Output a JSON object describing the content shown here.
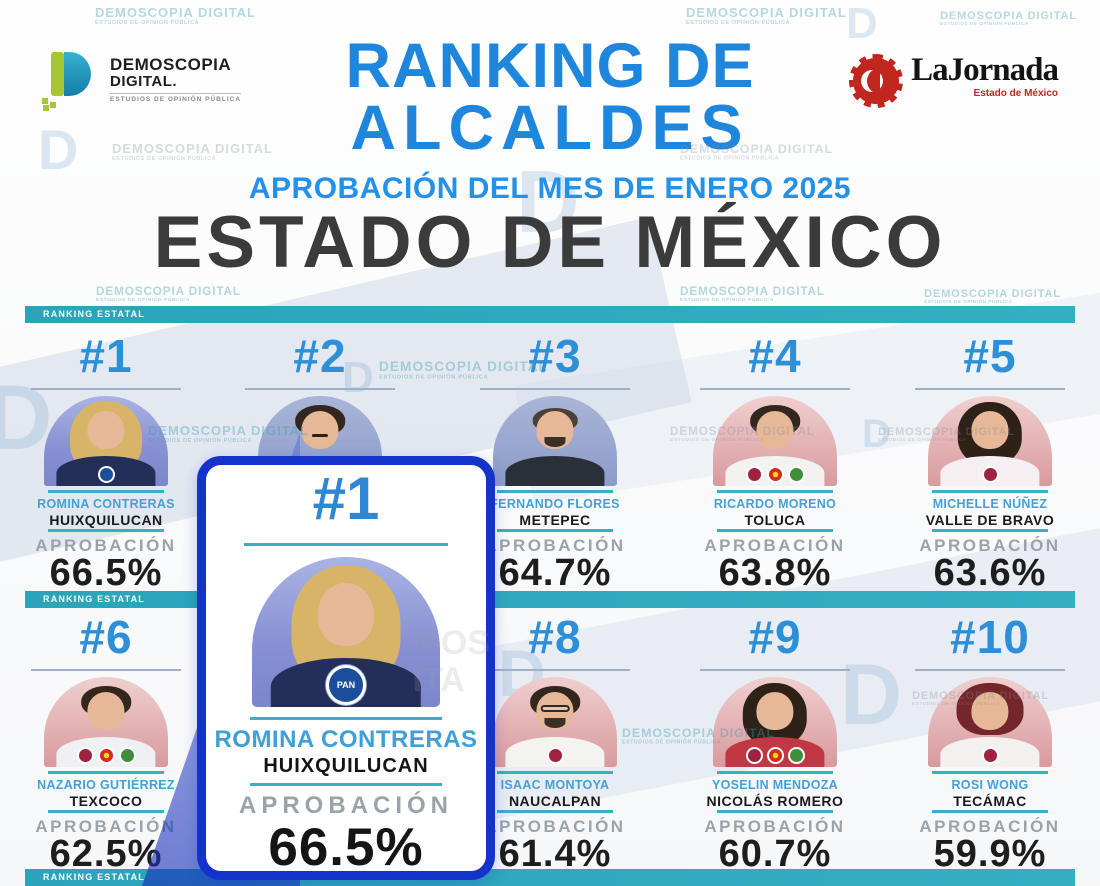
{
  "header": {
    "brand": {
      "name": "DEMOSCOPIA",
      "name2": "DIGITAL.",
      "tagline": "ESTUDIOS DE OPINIÓN PÚBLICA"
    },
    "title_line1": "RANKING DE",
    "title_line2": "ALCALDES",
    "subtitle": "APROBACIÓN DEL MES DE ENERO 2025",
    "state_title": "ESTADO DE MÉXICO",
    "partner": {
      "name": "LaJornada",
      "subtitle": "Estado de México"
    }
  },
  "section_banner": "RANKING ESTATAL",
  "watermark": {
    "line1": "DEMOSCOPIA DIGITAL",
    "line2": "ESTUDIOS DE OPINIÓN PÚBLICA"
  },
  "colors": {
    "title_blue": "#1e86dd",
    "rank_blue": "#2e8fd9",
    "name_blue": "#45a0d6",
    "teal": "#2fa9bd",
    "card_border_blue": "#1433cb",
    "dark_text": "#1d1d1d",
    "approval_gray": "#9aa3aa",
    "jornada_red": "#c2271f",
    "pan_blue": "#1b4f9e",
    "morena_red": "#9f2241",
    "pt_red": "#d52b1e",
    "pvem_green": "#3f8f3a"
  },
  "highlight_card": {
    "rank": "#1",
    "name": "ROMINA CONTRERAS",
    "municipality": "HUIXQUILUCAN",
    "approval_label": "APROBACIÓN",
    "approval": "66.5%",
    "party_logo": "pan-logo",
    "party_label": "PAN"
  },
  "ranking": {
    "rows": [
      {
        "entries": [
          {
            "rank": "#1",
            "name": "ROMINA CONTRERAS",
            "municipality": "HUIXQUILUCAN",
            "approval_label": "APROBACIÓN",
            "approval": "66.5%",
            "photo": {
              "bg": "lavender",
              "hair": "blonde",
              "torso": "#232f58"
            },
            "party_logos": [
              "pan-logo"
            ]
          },
          {
            "rank": "#2",
            "photo": {
              "bg": "bluegray",
              "hair": "dark",
              "mustache": true,
              "torso": "#202b49"
            },
            "party_logos": []
          },
          {
            "rank": "#3",
            "name": "FERNANDO FLORES",
            "municipality": "METEPEC",
            "approval_label": "APROBACIÓN",
            "approval": "64.7%",
            "photo": {
              "bg": "bluegray",
              "hair": "short",
              "beard": true,
              "torso": "#2b2f38"
            },
            "party_logos": []
          },
          {
            "rank": "#4",
            "name": "RICARDO MORENO",
            "municipality": "TOLUCA",
            "approval_label": "APROBACIÓN",
            "approval": "63.8%",
            "photo": {
              "bg": "pink",
              "hair": "dark",
              "torso": "#f2f2f0"
            },
            "party_logos": [
              "morena-logo",
              "pt-logo",
              "pvem-logo"
            ]
          },
          {
            "rank": "#5",
            "name": "MICHELLE NÚÑEZ",
            "municipality": "VALLE DE BRAVO",
            "approval_label": "APROBACIÓN",
            "approval": "63.6%",
            "photo": {
              "bg": "pink",
              "hair": "dark-long",
              "torso": "#f6eff1"
            },
            "party_logos": [
              "morena-logo"
            ]
          }
        ]
      },
      {
        "entries": [
          {
            "rank": "#6",
            "name": "NAZARIO GUTIÉRREZ",
            "municipality": "TEXCOCO",
            "approval_label": "APROBACIÓN",
            "approval": "62.5%",
            "photo": {
              "bg": "pink",
              "hair": "dark",
              "torso": "#eef0f2"
            },
            "party_logos": [
              "morena-logo",
              "pt-logo",
              "pvem-logo"
            ]
          },
          null,
          {
            "rank": "#8",
            "name": "ISAAC MONTOYA",
            "municipality": "NAUCALPAN",
            "approval_label": "APROBACIÓN",
            "approval": "61.4%",
            "photo": {
              "bg": "pink",
              "hair": "dark",
              "glasses": true,
              "beard": true,
              "torso": "#f4f3f0"
            },
            "party_logos": [
              "morena-logo"
            ]
          },
          {
            "rank": "#9",
            "name": "YOSELIN MENDOZA",
            "municipality": "NICOLÁS ROMERO",
            "approval_label": "APROBACIÓN",
            "approval": "60.7%",
            "photo": {
              "bg": "pink",
              "hair": "dark-long",
              "torso": "#c03844"
            },
            "party_logos": [
              "morena-logo",
              "pt-logo",
              "pvem-logo"
            ]
          },
          {
            "rank": "#10",
            "name": "ROSI WONG",
            "municipality": "TECÁMAC",
            "approval_label": "APROBACIÓN",
            "approval": "59.9%",
            "photo": {
              "bg": "pink",
              "hair": "darkred",
              "torso": "#f2f1ef"
            },
            "party_logos": [
              "morena-logo"
            ]
          }
        ]
      }
    ]
  },
  "chart_data": {
    "type": "table",
    "title": "Ranking de Alcaldes — Aprobación del mes de enero 2025 — Estado de México",
    "columns": [
      "rank",
      "mayor",
      "municipality",
      "approval_pct"
    ],
    "rows": [
      [
        "#1",
        "ROMINA CONTRERAS",
        "HUIXQUILUCAN",
        66.5
      ],
      [
        "#2",
        "",
        "",
        null
      ],
      [
        "#3",
        "FERNANDO FLORES",
        "METEPEC",
        64.7
      ],
      [
        "#4",
        "RICARDO MORENO",
        "TOLUCA",
        63.8
      ],
      [
        "#5",
        "MICHELLE NÚÑEZ",
        "VALLE DE BRAVO",
        63.6
      ],
      [
        "#6",
        "NAZARIO GUTIÉRREZ",
        "TEXCOCO",
        62.5
      ],
      [
        "#8",
        "ISAAC MONTOYA",
        "NAUCALPAN",
        61.4
      ],
      [
        "#9",
        "YOSELIN MENDOZA",
        "NICOLÁS ROMERO",
        60.7
      ],
      [
        "#10",
        "ROSI WONG",
        "TECÁMAC",
        59.9
      ]
    ]
  }
}
